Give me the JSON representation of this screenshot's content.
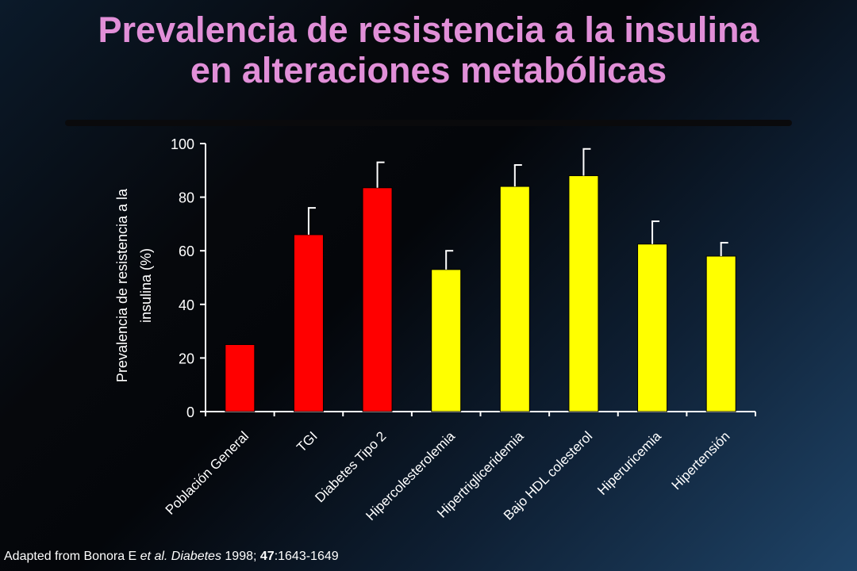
{
  "title": {
    "line1": "Prevalencia de resistencia a la insulina",
    "line2": "en alteraciones metabólicas"
  },
  "chart_data": {
    "type": "bar",
    "categories": [
      "Población General",
      "TGI",
      "Diabetes Tipo 2",
      "Hipercolesterolemia",
      "Hipertrigliceridemia",
      "Bajo HDL colesterol",
      "Hiperuricemia",
      "Hipertensión"
    ],
    "values": [
      25,
      66,
      83.5,
      53,
      84,
      88,
      62.5,
      58
    ],
    "errors": [
      null,
      10,
      9.5,
      7,
      8,
      10,
      8.5,
      5
    ],
    "bar_colors": [
      "#ff0000",
      "#ff0000",
      "#ff0000",
      "#ffff00",
      "#ffff00",
      "#ffff00",
      "#ffff00",
      "#ffff00"
    ],
    "ylabel_line1": "Prevalencia de resistencia a la",
    "ylabel_line2": "insulina (%)",
    "ylim": [
      0,
      100
    ],
    "yticks": [
      "0",
      "20",
      "40",
      "60",
      "80",
      "100"
    ],
    "grid": false
  },
  "footer": {
    "prefix": "Adapted from Bonora E ",
    "etal": "et al.",
    "journal": "Diabetes",
    "year": " 1998; ",
    "volume": "47",
    "pages": ":1643-1649"
  }
}
